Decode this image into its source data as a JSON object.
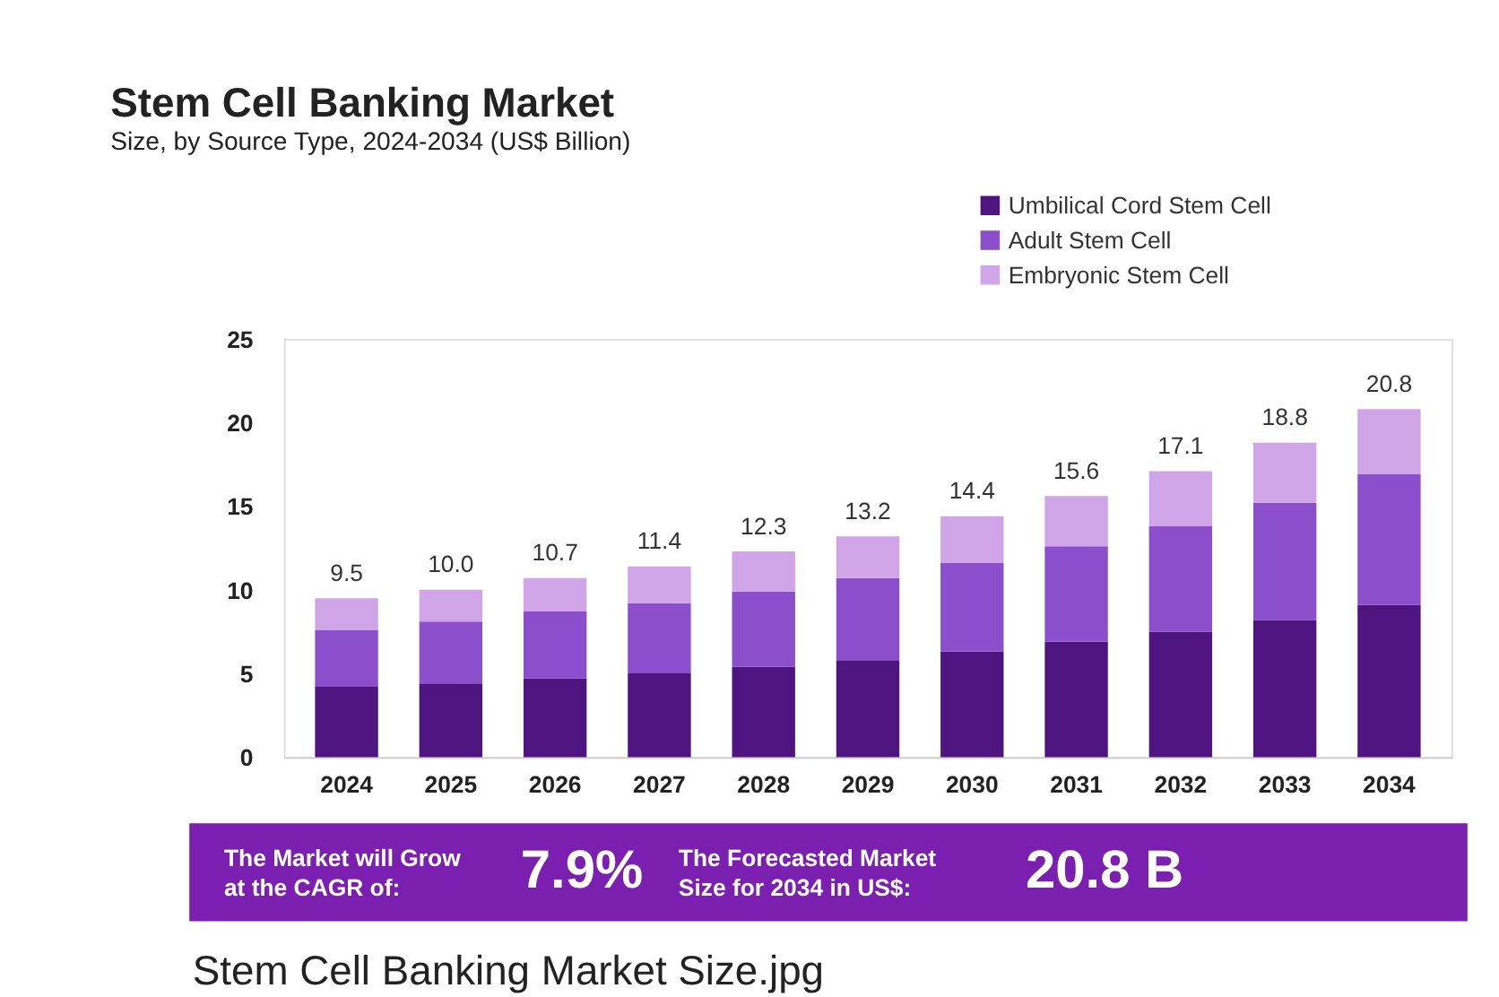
{
  "chart_data": {
    "type": "bar",
    "title": "Stem Cell Banking Market",
    "subtitle": "Size, by Source Type, 2024-2034 (US$ Billion)",
    "categories": [
      "2024",
      "2025",
      "2026",
      "2027",
      "2028",
      "2029",
      "2030",
      "2031",
      "2032",
      "2033",
      "2034"
    ],
    "stacked": true,
    "series": [
      {
        "name": "Umbilical Cord Stem Cell",
        "color": "#4e1580",
        "values": [
          4.2,
          4.4,
          4.7,
          5.0,
          5.4,
          5.8,
          6.3,
          6.9,
          7.5,
          8.2,
          9.1
        ]
      },
      {
        "name": "Adult Stem Cell",
        "color": "#8b4fcc",
        "values": [
          3.4,
          3.7,
          4.0,
          4.2,
          4.5,
          4.9,
          5.3,
          5.7,
          6.3,
          7.0,
          7.8
        ]
      },
      {
        "name": "Embryonic Stem Cell",
        "color": "#d0a5e8",
        "values": [
          1.9,
          1.9,
          2.0,
          2.2,
          2.4,
          2.5,
          2.8,
          3.0,
          3.3,
          3.6,
          3.9
        ]
      }
    ],
    "totals": [
      "9.5",
      "10.0",
      "10.7",
      "11.4",
      "12.3",
      "13.2",
      "14.4",
      "15.6",
      "17.1",
      "18.8",
      "20.8"
    ],
    "ylim": [
      0,
      25
    ],
    "yticks": [
      0,
      5,
      10,
      15,
      20,
      25
    ],
    "grid": false,
    "legend": "top right",
    "annotations": [
      "The Market will Grow at the CAGR of:",
      "7.9%",
      "The Forecasted Market Size for 2034 in US$:",
      "20.8 B",
      "Stem Cell Banking Market Size.jpg"
    ]
  }
}
